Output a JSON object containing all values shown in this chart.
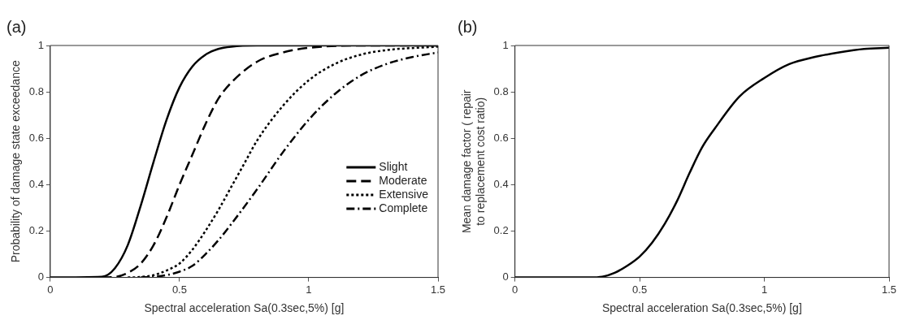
{
  "chart_data": [
    {
      "type": "line",
      "title": "(a)",
      "xlabel": "Spectral acceleration Sa(0.3sec,5%) [g]",
      "ylabel": "Probability of damage state exceedance",
      "xlim": [
        0,
        1.5
      ],
      "xticks": [
        0,
        0.5,
        1,
        1.5
      ],
      "ylim": [
        0,
        1
      ],
      "yticks": [
        0,
        0.2,
        0.4,
        0.6,
        0.8,
        1
      ],
      "grid": false,
      "legend": "bottom right",
      "marker": "none",
      "series": [
        {
          "name": "Slight",
          "color": "#000000",
          "line_style": "solid",
          "x": [
            0,
            0.2,
            0.25,
            0.3,
            0.35,
            0.4,
            0.45,
            0.5,
            0.55,
            0.6,
            0.65,
            0.7,
            0.8,
            1,
            1.5
          ],
          "values": [
            0,
            0.003,
            0.04,
            0.14,
            0.31,
            0.5,
            0.68,
            0.82,
            0.91,
            0.96,
            0.985,
            0.995,
            1,
            1,
            1
          ]
        },
        {
          "name": "Moderate",
          "color": "#000000",
          "line_style": "dashed",
          "x": [
            0.2,
            0.25,
            0.3,
            0.35,
            0.4,
            0.45,
            0.5,
            0.55,
            0.6,
            0.65,
            0.7,
            0.8,
            0.9,
            1,
            1.2,
            1.5
          ],
          "values": [
            0,
            0.002,
            0.02,
            0.06,
            0.14,
            0.26,
            0.4,
            0.53,
            0.66,
            0.77,
            0.84,
            0.93,
            0.97,
            0.99,
            1,
            1
          ]
        },
        {
          "name": "Extensive",
          "color": "#000000",
          "line_style": "dotted",
          "x": [
            0.3,
            0.35,
            0.4,
            0.45,
            0.5,
            0.55,
            0.6,
            0.65,
            0.7,
            0.75,
            0.8,
            0.9,
            1,
            1.1,
            1.2,
            1.3,
            1.5
          ],
          "values": [
            0,
            0.002,
            0.01,
            0.03,
            0.06,
            0.12,
            0.2,
            0.29,
            0.39,
            0.49,
            0.59,
            0.74,
            0.85,
            0.92,
            0.96,
            0.98,
            0.995
          ]
        },
        {
          "name": "Complete",
          "color": "#000000",
          "line_style": "dashdot",
          "x": [
            0.35,
            0.4,
            0.45,
            0.5,
            0.55,
            0.6,
            0.65,
            0.7,
            0.8,
            0.9,
            1,
            1.1,
            1.2,
            1.3,
            1.4,
            1.5
          ],
          "values": [
            0,
            0.003,
            0.01,
            0.025,
            0.05,
            0.1,
            0.16,
            0.23,
            0.38,
            0.54,
            0.68,
            0.79,
            0.87,
            0.92,
            0.95,
            0.97
          ]
        }
      ]
    },
    {
      "type": "line",
      "title": "(b)",
      "xlabel": "Spectral acceleration Sa(0.3sec,5%) [g]",
      "ylabel": "Mean damage factor ( repair to replacement cost ratio)",
      "xlim": [
        0,
        1.5
      ],
      "xticks": [
        0,
        0.5,
        1,
        1.5
      ],
      "ylim": [
        0,
        1
      ],
      "yticks": [
        0,
        0.2,
        0.4,
        0.6,
        0.8,
        1
      ],
      "grid": false,
      "legend": false,
      "marker": "none",
      "series": [
        {
          "color": "#000000",
          "line_style": "solid",
          "x": [
            0,
            0.3,
            0.35,
            0.4,
            0.45,
            0.5,
            0.55,
            0.6,
            0.65,
            0.7,
            0.75,
            0.8,
            0.9,
            1,
            1.1,
            1.2,
            1.3,
            1.4,
            1.5
          ],
          "values": [
            0,
            0,
            0.003,
            0.02,
            0.05,
            0.09,
            0.15,
            0.23,
            0.33,
            0.45,
            0.56,
            0.64,
            0.78,
            0.86,
            0.92,
            0.95,
            0.97,
            0.985,
            0.99
          ]
        }
      ]
    }
  ]
}
